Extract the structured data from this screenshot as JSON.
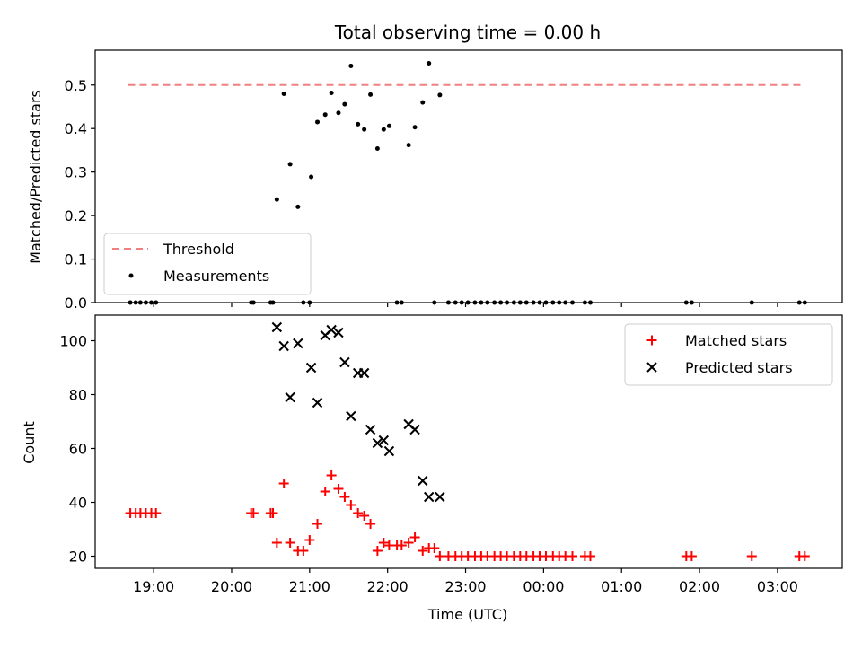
{
  "chart_data": [
    {
      "type": "scatter",
      "title": "Total observing time = 0.00 h",
      "xlabel": "",
      "ylabel": "Matched/Predicted stars",
      "xlim": [
        18.25,
        27.83
      ],
      "ylim": [
        0,
        0.58
      ],
      "yticks": [
        0.0,
        0.1,
        0.2,
        0.3,
        0.4,
        0.5
      ],
      "ytick_labels": [
        "0.0",
        "0.1",
        "0.2",
        "0.3",
        "0.4",
        "0.5"
      ],
      "threshold": {
        "name": "Threshold",
        "value": 0.5,
        "x_range": [
          18.67,
          27.33
        ],
        "color": "#f08080"
      },
      "legend": {
        "position": "lower-left",
        "entries": [
          "Threshold",
          "Measurements"
        ]
      },
      "series": [
        {
          "name": "Measurements",
          "color": "#000000",
          "points": [
            [
              18.7,
              0
            ],
            [
              18.77,
              0
            ],
            [
              18.83,
              0
            ],
            [
              18.9,
              0
            ],
            [
              18.97,
              0
            ],
            [
              19.03,
              0
            ],
            [
              20.25,
              0
            ],
            [
              20.28,
              0
            ],
            [
              20.5,
              0
            ],
            [
              20.53,
              0
            ],
            [
              20.58,
              0.237
            ],
            [
              20.67,
              0.48
            ],
            [
              20.75,
              0.318
            ],
            [
              20.85,
              0.22
            ],
            [
              20.92,
              0
            ],
            [
              21.0,
              0
            ],
            [
              21.02,
              0.289
            ],
            [
              21.1,
              0.415
            ],
            [
              21.2,
              0.432
            ],
            [
              21.28,
              0.482
            ],
            [
              21.37,
              0.436
            ],
            [
              21.45,
              0.456
            ],
            [
              21.53,
              0.544
            ],
            [
              21.62,
              0.41
            ],
            [
              21.7,
              0.398
            ],
            [
              21.78,
              0.478
            ],
            [
              21.87,
              0.354
            ],
            [
              21.95,
              0.398
            ],
            [
              22.02,
              0.406
            ],
            [
              22.12,
              0
            ],
            [
              22.18,
              0
            ],
            [
              22.27,
              0.362
            ],
            [
              22.35,
              0.403
            ],
            [
              22.45,
              0.46
            ],
            [
              22.53,
              0.55
            ],
            [
              22.6,
              0
            ],
            [
              22.67,
              0.477
            ],
            [
              22.78,
              0
            ],
            [
              22.87,
              0
            ],
            [
              22.95,
              0
            ],
            [
              23.03,
              0
            ],
            [
              23.12,
              0
            ],
            [
              23.2,
              0
            ],
            [
              23.28,
              0
            ],
            [
              23.37,
              0
            ],
            [
              23.45,
              0
            ],
            [
              23.53,
              0
            ],
            [
              23.62,
              0
            ],
            [
              23.7,
              0
            ],
            [
              23.78,
              0
            ],
            [
              23.87,
              0
            ],
            [
              23.95,
              0
            ],
            [
              24.03,
              0
            ],
            [
              24.12,
              0
            ],
            [
              24.2,
              0
            ],
            [
              24.28,
              0
            ],
            [
              24.37,
              0
            ],
            [
              24.53,
              0
            ],
            [
              24.6,
              0
            ],
            [
              25.83,
              0
            ],
            [
              25.9,
              0
            ],
            [
              26.67,
              0
            ],
            [
              27.28,
              0
            ],
            [
              27.35,
              0
            ]
          ]
        }
      ]
    },
    {
      "type": "scatter",
      "title": "",
      "xlabel": "Time (UTC)",
      "ylabel": "Count",
      "xlim": [
        18.25,
        27.83
      ],
      "ylim": [
        15.5,
        109.5
      ],
      "xticks": [
        19,
        20,
        21,
        22,
        23,
        24,
        25,
        26,
        27
      ],
      "xtick_labels": [
        "19:00",
        "20:00",
        "21:00",
        "22:00",
        "23:00",
        "00:00",
        "01:00",
        "02:00",
        "03:00"
      ],
      "yticks": [
        20,
        40,
        60,
        80,
        100
      ],
      "ytick_labels": [
        "20",
        "40",
        "60",
        "80",
        "100"
      ],
      "legend": {
        "position": "top-right",
        "entries": [
          "Matched stars",
          "Predicted stars"
        ]
      },
      "series": [
        {
          "name": "Matched stars",
          "marker": "plus",
          "color": "#ff0000",
          "points": [
            [
              18.7,
              36
            ],
            [
              18.77,
              36
            ],
            [
              18.83,
              36
            ],
            [
              18.9,
              36
            ],
            [
              18.97,
              36
            ],
            [
              19.03,
              36
            ],
            [
              20.25,
              36
            ],
            [
              20.28,
              36
            ],
            [
              20.5,
              36
            ],
            [
              20.53,
              36
            ],
            [
              20.58,
              25
            ],
            [
              20.67,
              47
            ],
            [
              20.75,
              25
            ],
            [
              20.85,
              22
            ],
            [
              20.92,
              22
            ],
            [
              21.0,
              26
            ],
            [
              21.1,
              32
            ],
            [
              21.2,
              44
            ],
            [
              21.28,
              50
            ],
            [
              21.37,
              45
            ],
            [
              21.45,
              42
            ],
            [
              21.53,
              39
            ],
            [
              21.62,
              36
            ],
            [
              21.7,
              35
            ],
            [
              21.78,
              32
            ],
            [
              21.87,
              22
            ],
            [
              21.95,
              25
            ],
            [
              22.02,
              24
            ],
            [
              22.12,
              24
            ],
            [
              22.18,
              24
            ],
            [
              22.27,
              25
            ],
            [
              22.35,
              27
            ],
            [
              22.45,
              22
            ],
            [
              22.53,
              23
            ],
            [
              22.6,
              23
            ],
            [
              22.67,
              20
            ],
            [
              22.78,
              20
            ],
            [
              22.87,
              20
            ],
            [
              22.95,
              20
            ],
            [
              23.03,
              20
            ],
            [
              23.12,
              20
            ],
            [
              23.2,
              20
            ],
            [
              23.28,
              20
            ],
            [
              23.37,
              20
            ],
            [
              23.45,
              20
            ],
            [
              23.53,
              20
            ],
            [
              23.62,
              20
            ],
            [
              23.7,
              20
            ],
            [
              23.78,
              20
            ],
            [
              23.87,
              20
            ],
            [
              23.95,
              20
            ],
            [
              24.03,
              20
            ],
            [
              24.12,
              20
            ],
            [
              24.2,
              20
            ],
            [
              24.28,
              20
            ],
            [
              24.37,
              20
            ],
            [
              24.53,
              20
            ],
            [
              24.6,
              20
            ],
            [
              25.83,
              20
            ],
            [
              25.9,
              20
            ],
            [
              26.67,
              20
            ],
            [
              27.28,
              20
            ],
            [
              27.35,
              20
            ]
          ]
        },
        {
          "name": "Predicted stars",
          "marker": "x",
          "color": "#000000",
          "points": [
            [
              20.58,
              105
            ],
            [
              20.67,
              98
            ],
            [
              20.75,
              79
            ],
            [
              20.85,
              99
            ],
            [
              21.02,
              90
            ],
            [
              21.1,
              77
            ],
            [
              21.2,
              102
            ],
            [
              21.28,
              104
            ],
            [
              21.37,
              103
            ],
            [
              21.45,
              92
            ],
            [
              21.53,
              72
            ],
            [
              21.62,
              88
            ],
            [
              21.7,
              88
            ],
            [
              21.78,
              67
            ],
            [
              21.87,
              62
            ],
            [
              21.95,
              63
            ],
            [
              22.02,
              59
            ],
            [
              22.27,
              69
            ],
            [
              22.35,
              67
            ],
            [
              22.45,
              48
            ],
            [
              22.53,
              42
            ],
            [
              22.67,
              42
            ]
          ]
        }
      ]
    }
  ]
}
